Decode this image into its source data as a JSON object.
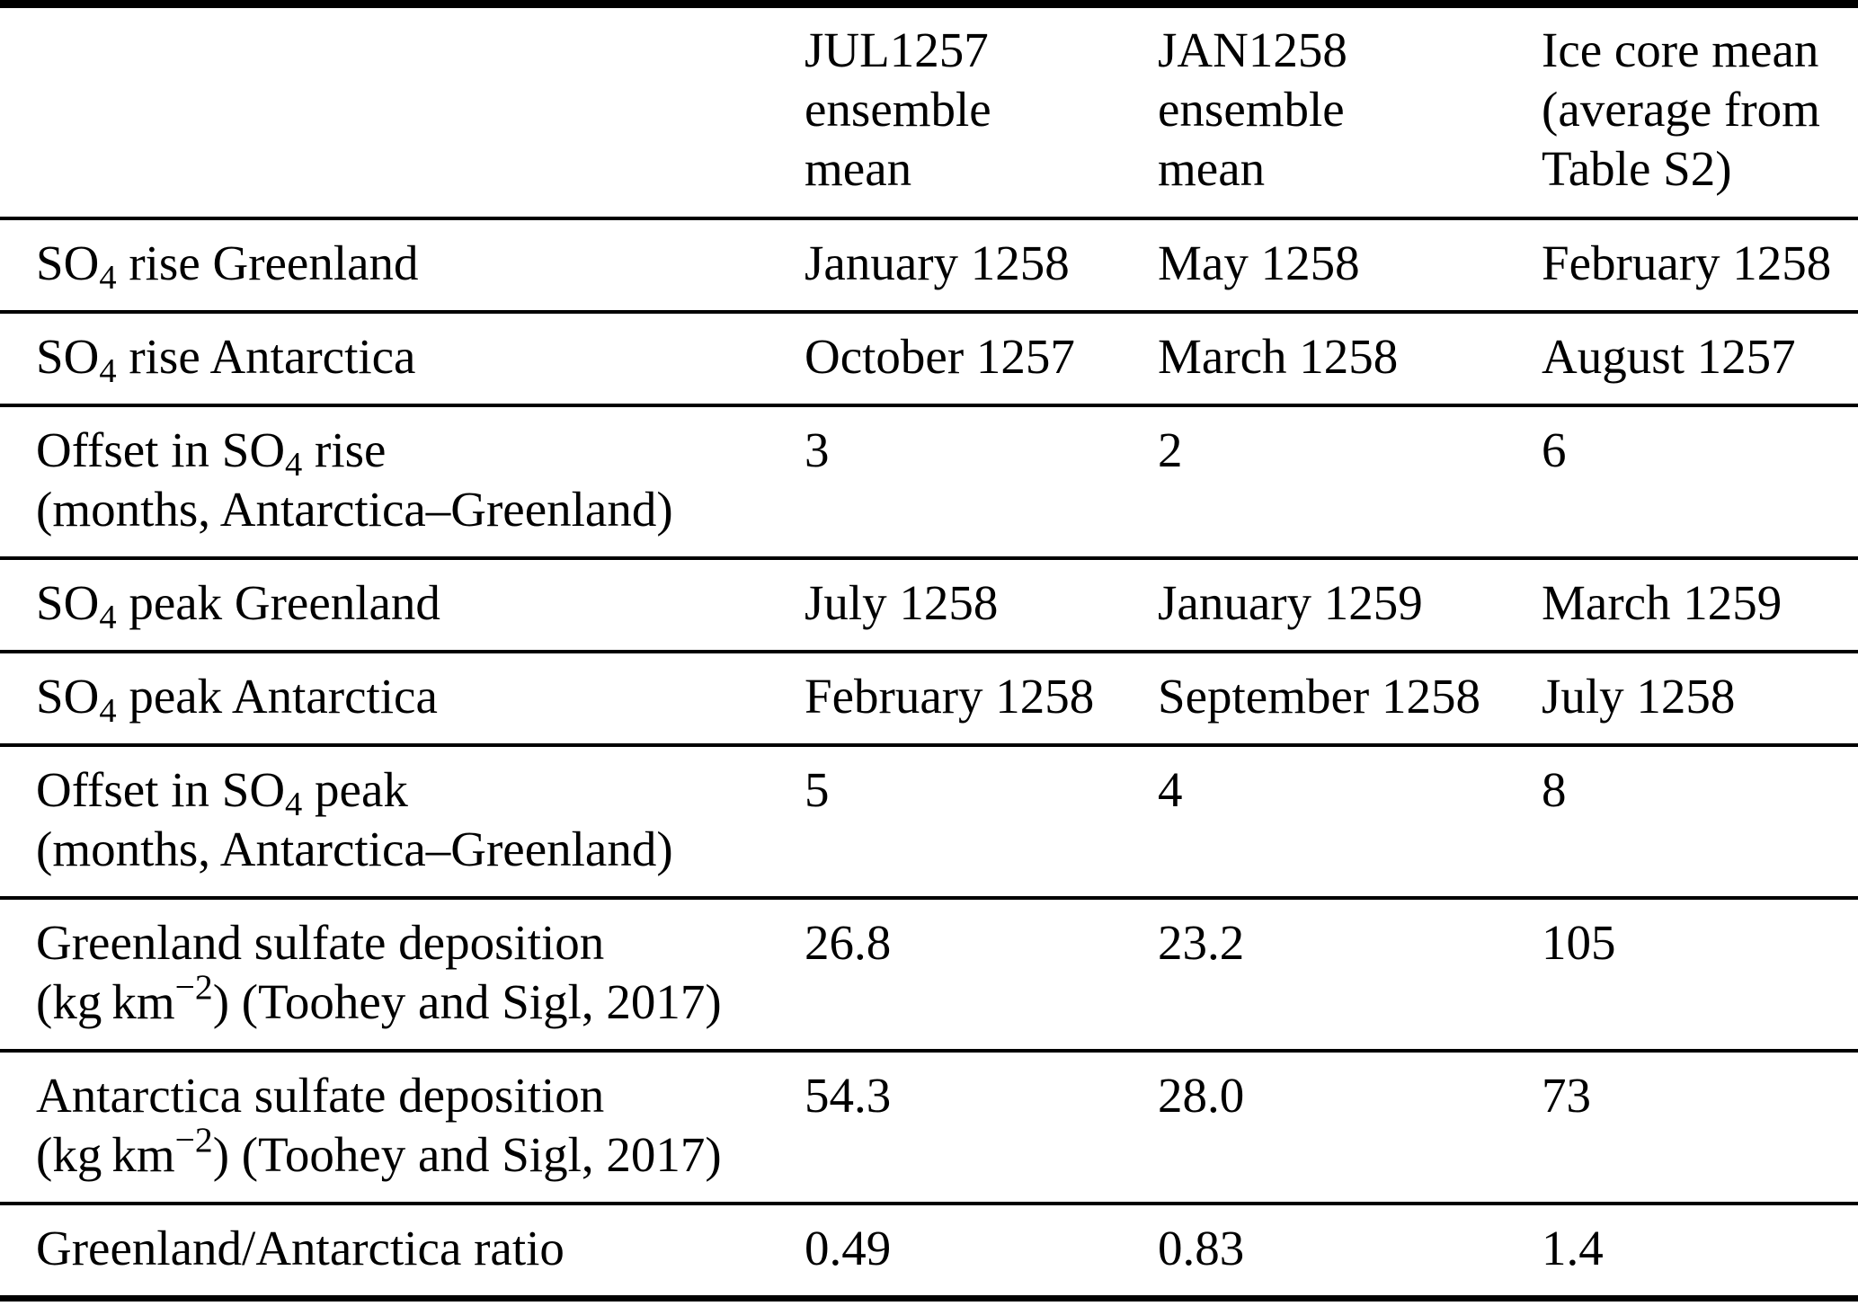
{
  "table": {
    "header": {
      "col1": "",
      "col2": [
        "JUL1257",
        "ensemble",
        "mean"
      ],
      "col3": [
        "JAN1258",
        "ensemble",
        "mean"
      ],
      "col4": [
        "Ice core mean",
        "(average from",
        "Table S2)"
      ]
    },
    "rows": [
      {
        "label": [
          {
            "t": "SO"
          },
          {
            "sub": "4"
          },
          {
            "t": " rise Greenland"
          }
        ],
        "values": [
          "January 1258",
          "May 1258",
          "February 1258"
        ]
      },
      {
        "label": [
          {
            "t": "SO"
          },
          {
            "sub": "4"
          },
          {
            "t": " rise Antarctica"
          }
        ],
        "values": [
          "October 1257",
          "March 1258",
          "August 1257"
        ]
      },
      {
        "label": [
          {
            "t": "Offset in SO"
          },
          {
            "sub": "4"
          },
          {
            "t": " rise"
          },
          {
            "br": true
          },
          {
            "t": "(months, Antarctica–Greenland)"
          }
        ],
        "values": [
          "3",
          "2",
          "6"
        ]
      },
      {
        "label": [
          {
            "t": "SO"
          },
          {
            "sub": "4"
          },
          {
            "t": " peak Greenland"
          }
        ],
        "values": [
          "July 1258",
          "January 1259",
          "March 1259"
        ]
      },
      {
        "label": [
          {
            "t": "SO"
          },
          {
            "sub": "4"
          },
          {
            "t": " peak Antarctica"
          }
        ],
        "values": [
          "February 1258",
          "September 1258",
          "July 1258"
        ]
      },
      {
        "label": [
          {
            "t": "Offset in SO"
          },
          {
            "sub": "4"
          },
          {
            "t": " peak"
          },
          {
            "br": true
          },
          {
            "t": "(months, Antarctica–Greenland)"
          }
        ],
        "values": [
          "5",
          "4",
          "8"
        ]
      },
      {
        "label": [
          {
            "t": "Greenland sulfate deposition"
          },
          {
            "br": true
          },
          {
            "t": "(kg km"
          },
          {
            "sup": "−2"
          },
          {
            "t": ") (Toohey and Sigl, 2017)"
          }
        ],
        "values": [
          "26.8",
          "23.2",
          "105"
        ]
      },
      {
        "label": [
          {
            "t": "Antarctica sulfate deposition"
          },
          {
            "br": true
          },
          {
            "t": "(kg km"
          },
          {
            "sup": "−2"
          },
          {
            "t": ") (Toohey and Sigl, 2017)"
          }
        ],
        "values": [
          "54.3",
          "28.0",
          "73"
        ]
      },
      {
        "label": [
          {
            "t": "Greenland/Antarctica ratio"
          }
        ],
        "values": [
          "0.49",
          "0.83",
          "1.4"
        ]
      }
    ]
  }
}
